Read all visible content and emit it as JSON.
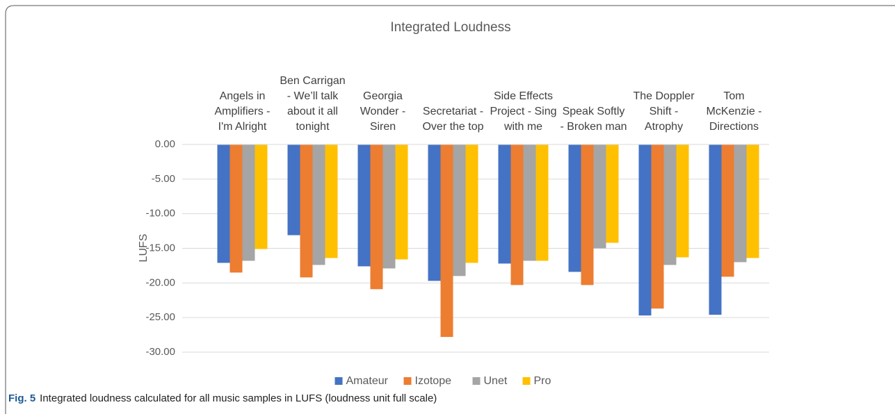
{
  "chart_data": {
    "type": "bar",
    "title": "Integrated Loudness",
    "categories": [
      "Angels in Amplifiers - I'm Alright",
      "Ben Carrigan - We’ll talk about it all tonight",
      "Georgia Wonder - Siren",
      "Secretariat - Over the top",
      "Side Effects Project - Sing with me",
      "Speak Softly - Broken man",
      "The Doppler Shift - Atrophy",
      "Tom McKenzie - Directions"
    ],
    "series": [
      {
        "name": "Amateur",
        "color": "#4472c4",
        "values": [
          -17.1,
          -13.1,
          -17.6,
          -19.7,
          -17.2,
          -18.4,
          -24.7,
          -24.6
        ]
      },
      {
        "name": "Izotope",
        "color": "#ed7d31",
        "values": [
          -18.5,
          -19.2,
          -20.9,
          -27.8,
          -20.3,
          -20.3,
          -23.7,
          -19.1
        ]
      },
      {
        "name": "Unet",
        "color": "#a5a5a5",
        "values": [
          -16.8,
          -17.4,
          -17.9,
          -19.0,
          -16.8,
          -15.0,
          -17.4,
          -17.0
        ]
      },
      {
        "name": "Pro",
        "color": "#ffc000",
        "values": [
          -15.1,
          -16.4,
          -16.6,
          -17.1,
          -16.8,
          -14.2,
          -16.3,
          -16.4
        ]
      }
    ],
    "ylabel": "LUFS",
    "ylim": [
      -30,
      0
    ],
    "yticks": [
      {
        "value": 0,
        "label": "0.00"
      },
      {
        "value": -5,
        "label": "-5.00"
      },
      {
        "value": -10,
        "label": "-10.00"
      },
      {
        "value": -15,
        "label": "-15.00"
      },
      {
        "value": -20,
        "label": "-20.00"
      },
      {
        "value": -25,
        "label": "-25.00"
      },
      {
        "value": -30,
        "label": "-30.00"
      }
    ],
    "grid": true,
    "legend": "bottom"
  },
  "caption": {
    "label": "Fig. 5",
    "text": "Integrated loudness calculated for all music samples in LUFS (loudness unit full scale)"
  }
}
